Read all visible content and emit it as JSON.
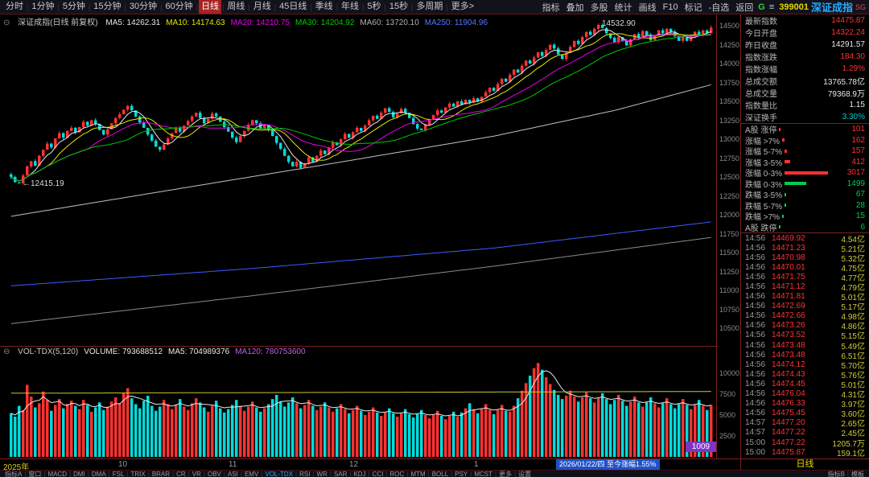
{
  "colors": {
    "up": "#ff3232",
    "down": "#00dcdc",
    "axis_text": "#8a8a8a",
    "panel_border": "#7a2020"
  },
  "toolbar": {
    "periods": [
      "分时",
      "1分钟",
      "5分钟",
      "15分钟",
      "30分钟",
      "60分钟",
      "日线",
      "周线",
      "月线",
      "45日线",
      "季线",
      "年线",
      "5秒",
      "15秒",
      "多周期",
      "更多>"
    ],
    "active_period": "日线",
    "tools": [
      "指标",
      "叠加",
      "多股",
      "统计",
      "画线",
      "F10",
      "标记",
      "-自选",
      "返回"
    ],
    "g_label": "G",
    "menu_icon": "≡",
    "stock_code": "399001",
    "stock_name": "深证成指",
    "market_tag": "SG"
  },
  "chart_header": {
    "icon": "⊙",
    "title": "深证成指(日线 前复权)",
    "mas": [
      {
        "text": "MA5: 14262.31",
        "color": "#e8e8e8"
      },
      {
        "text": "MA10: 14174.63",
        "color": "#e8e800"
      },
      {
        "text": "MA20: 14210.75",
        "color": "#e800e8"
      },
      {
        "text": "MA30: 14204.92",
        "color": "#00c800"
      },
      {
        "text": "MA60: 13720.10",
        "color": "#b0b0b0"
      },
      {
        "text": "MA250: 11904.96",
        "color": "#5577ff"
      }
    ]
  },
  "vol_header": {
    "icon": "⊖",
    "items": [
      {
        "text": "VOL-TDX(5,120)",
        "color": "#c8c8c8"
      },
      {
        "text": "VOLUME: 793688512",
        "color": "#e8e8e8"
      },
      {
        "text": "MA5: 704989376",
        "color": "#e8e8e8"
      },
      {
        "text": "MA120: 780753600",
        "color": "#c060e0"
      }
    ]
  },
  "chart_data": {
    "type": "candlestick",
    "title": "深证成指(日线 前复权)",
    "price_range": {
      "top": 14649,
      "bottom": 10266
    },
    "y_ticks": {
      "max": 14500,
      "min": 10500,
      "step": 250
    },
    "up_color": "#ff3232",
    "down_color": "#00dcdc",
    "closes": [
      12500,
      12430,
      12415,
      12520,
      12640,
      12710,
      12650,
      12780,
      12860,
      12940,
      12890,
      13010,
      13080,
      13020,
      13110,
      13150,
      13090,
      13160,
      13230,
      13180,
      13250,
      13200,
      13120,
      13060,
      13130,
      13210,
      13280,
      13330,
      13390,
      13440,
      13380,
      13300,
      13220,
      13150,
      13060,
      12980,
      12900,
      12860,
      12930,
      13010,
      13080,
      13150,
      13100,
      13180,
      13240,
      13300,
      13350,
      13280,
      13210,
      13270,
      13340,
      13300,
      13230,
      13160,
      13100,
      13020,
      12960,
      13040,
      13110,
      13190,
      13250,
      13210,
      13140,
      13190,
      13120,
      13040,
      12950,
      12870,
      12780,
      12700,
      12640,
      12700,
      12620,
      12680,
      12760,
      12700,
      12780,
      12850,
      12800,
      12890,
      12960,
      12920,
      13000,
      13070,
      13020,
      13090,
      13150,
      13110,
      13180,
      13250,
      13310,
      13270,
      13350,
      13410,
      13360,
      13290,
      13340,
      13400,
      13350,
      13280,
      13200,
      13140,
      13120,
      13190,
      13260,
      13320,
      13380,
      13350,
      13420,
      13470,
      13430,
      13500,
      13460,
      13520,
      13480,
      13540,
      13500,
      13560,
      13620,
      13680,
      13640,
      13730,
      13800,
      13760,
      13850,
      13920,
      13880,
      13970,
      14040,
      14000,
      14080,
      14150,
      14100,
      14180,
      14250,
      14200,
      14120,
      14060,
      14140,
      14220,
      14300,
      14260,
      14350,
      14420,
      14380,
      14460,
      14510,
      14470,
      14400,
      14340,
      14280,
      14350,
      14300,
      14240,
      14320,
      14390,
      14350,
      14430,
      14380,
      14310,
      14370,
      14440,
      14400,
      14460,
      14420,
      14360,
      14300,
      14360,
      14300,
      14360,
      14420,
      14380,
      14440,
      14400,
      14476
    ],
    "volumes": [
      5200,
      4800,
      6100,
      5600,
      8600,
      7200,
      5900,
      6400,
      7800,
      6800,
      5500,
      6200,
      6900,
      5800,
      6300,
      6700,
      6100,
      5700,
      6800,
      6200,
      5400,
      5900,
      6500,
      5600,
      6000,
      6600,
      7100,
      6400,
      7600,
      8200,
      7000,
      6300,
      5800,
      6700,
      7300,
      6100,
      5500,
      6000,
      6800,
      6300,
      5700,
      6200,
      6900,
      6000,
      5600,
      6400,
      7000,
      6500,
      5900,
      5400,
      6100,
      6700,
      5800,
      5300,
      5700,
      6200,
      6800,
      6100,
      5500,
      6000,
      6600,
      5900,
      5400,
      5800,
      6300,
      6900,
      7400,
      6600,
      6000,
      6500,
      7100,
      6400,
      5800,
      6200,
      6800,
      6100,
      5600,
      6000,
      6500,
      5900,
      5400,
      5800,
      6300,
      5700,
      5200,
      5600,
      6100,
      5500,
      5000,
      5400,
      5900,
      5300,
      4900,
      5300,
      5800,
      5200,
      4800,
      5200,
      5700,
      5100,
      4700,
      5100,
      5600,
      5000,
      4600,
      5000,
      5500,
      4900,
      4500,
      4900,
      5400,
      4800,
      5300,
      5800,
      6400,
      5700,
      5200,
      5700,
      6300,
      5600,
      5100,
      5600,
      6200,
      5500,
      5400,
      6100,
      7000,
      7900,
      8800,
      9700,
      10600,
      11200,
      10400,
      9500,
      8700,
      8000,
      7400,
      6900,
      7300,
      7900,
      7200,
      6600,
      7100,
      7700,
      7000,
      6500,
      7000,
      7600,
      6900,
      6300,
      6800,
      7400,
      6700,
      6100,
      6600,
      7200,
      6500,
      6000,
      6500,
      7100,
      6400,
      5900,
      6400,
      7000,
      6300,
      5800,
      6300,
      6900,
      6200,
      5700,
      6200,
      6800,
      6100,
      5600,
      6200
    ],
    "ma_computed": [
      {
        "name": "MA5",
        "period": 5,
        "color": "#e8e8e8"
      },
      {
        "name": "MA10",
        "period": 10,
        "color": "#e8e800"
      },
      {
        "name": "MA20",
        "period": 20,
        "color": "#e800e8"
      },
      {
        "name": "MA30",
        "period": 30,
        "color": "#00c800"
      }
    ],
    "ma_waypoint_lines": [
      {
        "name": "MA60",
        "color": "#c0c0c0",
        "points": [
          [
            0,
            11980
          ],
          [
            40,
            12330
          ],
          [
            80,
            12680
          ],
          [
            120,
            13040
          ],
          [
            150,
            13380
          ],
          [
            174,
            13720
          ]
        ]
      },
      {
        "name": "MA250",
        "color": "#3a5bff",
        "points": [
          [
            0,
            11060
          ],
          [
            60,
            11290
          ],
          [
            120,
            11560
          ],
          [
            174,
            11905
          ]
        ]
      },
      {
        "name": "MA-long",
        "color": "#8a8a8a",
        "points": [
          [
            0,
            10560
          ],
          [
            60,
            10930
          ],
          [
            120,
            11320
          ],
          [
            174,
            11700
          ]
        ]
      }
    ],
    "low_annotation": {
      "index": 2,
      "price": 12415.19,
      "text": "←12415.19"
    },
    "high_annotation": {
      "index": 146,
      "price": 14532.9,
      "text": "14532.90"
    },
    "volume_axis": {
      "max": 12000,
      "ticks": [
        10000,
        7500,
        5000,
        2500
      ]
    },
    "volume_ma5_color": "#e8e8e8",
    "volume_ma120": {
      "color": "#c8c832",
      "points": [
        [
          0,
          7600
        ],
        [
          87,
          7700
        ],
        [
          174,
          7810
        ]
      ]
    },
    "x_axis": {
      "year_label": "2025年",
      "months": [
        {
          "text": "10",
          "pos": 0.165
        },
        {
          "text": "11",
          "pos": 0.318
        },
        {
          "text": "12",
          "pos": 0.487
        },
        {
          "text": "1",
          "pos": 0.66
        }
      ],
      "highlight": {
        "text": "2026/01/22/四 至今涨幅1.55%",
        "pos": 0.775
      },
      "period_label": "日线"
    },
    "corner_badge": "1009"
  },
  "right_panel": {
    "prev_close_value": 14291.57,
    "info_rows": [
      {
        "label": "最新指数",
        "value": "14475.87",
        "color": "#ff3232"
      },
      {
        "label": "今日开盘",
        "value": "14322.24",
        "color": "#ff3232"
      },
      {
        "label": "昨日收盘",
        "value": "14291.57",
        "color": "#e8e8e8"
      },
      {
        "label": "指数涨跌",
        "value": "184.30",
        "color": "#ff3232"
      },
      {
        "label": "指数涨幅",
        "value": "1.29%",
        "color": "#ff3232"
      },
      {
        "label": "总成交额",
        "value": "13765.78亿",
        "color": "#e8e8e8"
      },
      {
        "label": "总成交量",
        "value": "79368.9万",
        "color": "#e8e8e8"
      },
      {
        "label": "指数量比",
        "value": "1.15",
        "color": "#e8e8e8"
      },
      {
        "label": "深证换手",
        "value": "3.30%",
        "color": "#00cccc"
      }
    ],
    "distribution_rows": [
      {
        "label": "A股 涨停",
        "value": 101,
        "color": "#ff3232"
      },
      {
        "label": "涨幅 >7%",
        "value": 162,
        "color": "#ff3232"
      },
      {
        "label": "涨幅 5-7%",
        "value": 157,
        "color": "#ff3232"
      },
      {
        "label": "涨幅 3-5%",
        "value": 412,
        "color": "#ff3232"
      },
      {
        "label": "涨幅 0-3%",
        "value": 3017,
        "color": "#ff3232"
      },
      {
        "label": "跌幅 0-3%",
        "value": 1499,
        "color": "#00cc50"
      },
      {
        "label": "跌幅 3-5%",
        "value": 67,
        "color": "#00cc50"
      },
      {
        "label": "跌幅 5-7%",
        "value": 28,
        "color": "#00cc50"
      },
      {
        "label": "跌幅 >7%",
        "value": 15,
        "color": "#00cc50"
      },
      {
        "label": "A股 跌停",
        "value": 6,
        "color": "#00cc50"
      }
    ],
    "ticks": [
      {
        "time": "14:56",
        "price": "14469.92",
        "amount": "4.54亿"
      },
      {
        "time": "14:56",
        "price": "14471.23",
        "amount": "5.21亿"
      },
      {
        "time": "14:56",
        "price": "14470.98",
        "amount": "5.32亿"
      },
      {
        "time": "14:56",
        "price": "14470.01",
        "amount": "4.75亿"
      },
      {
        "time": "14:56",
        "price": "14471.75",
        "amount": "4.77亿"
      },
      {
        "time": "14:56",
        "price": "14471.12",
        "amount": "4.79亿"
      },
      {
        "time": "14:56",
        "price": "14471.81",
        "amount": "5.01亿"
      },
      {
        "time": "14:56",
        "price": "14472.69",
        "amount": "5.17亿"
      },
      {
        "time": "14:56",
        "price": "14472.66",
        "amount": "4.98亿"
      },
      {
        "time": "14:56",
        "price": "14473.26",
        "amount": "4.86亿"
      },
      {
        "time": "14:56",
        "price": "14473.52",
        "amount": "5.15亿"
      },
      {
        "time": "14:56",
        "price": "14473.48",
        "amount": "5.49亿"
      },
      {
        "time": "14:56",
        "price": "14473.48",
        "amount": "6.51亿"
      },
      {
        "time": "14:56",
        "price": "14474.12",
        "amount": "5.70亿"
      },
      {
        "time": "14:56",
        "price": "14474.43",
        "amount": "5.76亿"
      },
      {
        "time": "14:56",
        "price": "14474.45",
        "amount": "5.01亿"
      },
      {
        "time": "14:56",
        "price": "14476.04",
        "amount": "4.31亿"
      },
      {
        "time": "14:56",
        "price": "14476.33",
        "amount": "3.97亿"
      },
      {
        "time": "14:56",
        "price": "14475.45",
        "amount": "3.60亿"
      },
      {
        "time": "14:57",
        "price": "14477.20",
        "amount": "2.65亿"
      },
      {
        "time": "14:57",
        "price": "14477.22",
        "amount": "2.45亿"
      },
      {
        "time": "15:00",
        "price": "14477.22",
        "amount": "1205.7万"
      },
      {
        "time": "15:00",
        "price": "14475.87",
        "amount": "159.1亿"
      }
    ]
  },
  "bottom_bar": {
    "left_items": [
      "指标A",
      "窗口",
      "MACD",
      "DMI",
      "DMA",
      "FSL",
      "TRIX",
      "BRAR",
      "CR",
      "VR",
      "OBV",
      "ASI",
      "EMV",
      "VOL-TDX",
      "RSI",
      "WR",
      "SAR",
      "KDJ",
      "CCI",
      "ROC",
      "MTM",
      "BOLL",
      "PSY",
      "MCST",
      "更多",
      "设置"
    ],
    "active_item": "VOL-TDX",
    "right_items": [
      "指标B",
      "模板"
    ]
  }
}
